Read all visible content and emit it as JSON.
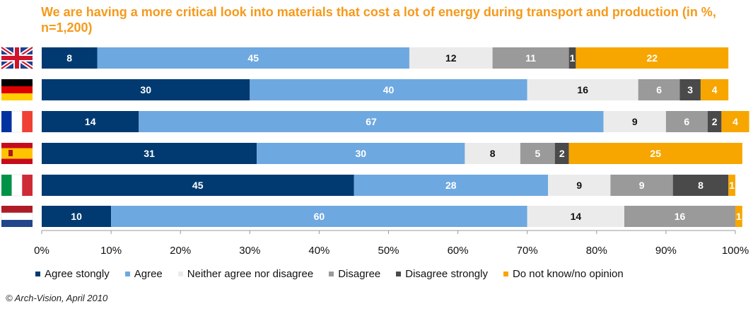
{
  "title": "We are having a more critical look into materials that cost a lot of energy during transport and production (in %, n=1,200)",
  "source": "© Arch-Vision, April 2010",
  "chart_data": {
    "type": "bar",
    "orientation": "horizontal",
    "stacked": true,
    "categories": [
      "United Kingdom",
      "Germany",
      "France",
      "Spain",
      "Italy",
      "Netherlands"
    ],
    "category_labels_shown_as": "flags",
    "series": [
      {
        "name": "Agree stongly",
        "color": "#003a70",
        "values": [
          8,
          30,
          14,
          31,
          45,
          10
        ]
      },
      {
        "name": "Agree",
        "color": "#6ea8e0",
        "values": [
          45,
          40,
          67,
          30,
          28,
          60
        ]
      },
      {
        "name": "Neither agree nor disagree",
        "color": "#ebebeb",
        "values": [
          12,
          16,
          9,
          8,
          9,
          14
        ]
      },
      {
        "name": "Disagree",
        "color": "#9a9a9a",
        "values": [
          11,
          6,
          6,
          5,
          9,
          16
        ]
      },
      {
        "name": "Disagree strongly",
        "color": "#4a4a4a",
        "values": [
          1,
          3,
          2,
          2,
          8,
          0
        ]
      },
      {
        "name": "Do not know/no opinion",
        "color": "#f7a600",
        "values": [
          22,
          4,
          4,
          25,
          1,
          1
        ]
      }
    ],
    "xlim": [
      0,
      100
    ],
    "x_ticks": [
      "0%",
      "10%",
      "20%",
      "30%",
      "40%",
      "50%",
      "60%",
      "70%",
      "80%",
      "90%",
      "100%"
    ],
    "grid": false,
    "legend_position": "bottom"
  }
}
